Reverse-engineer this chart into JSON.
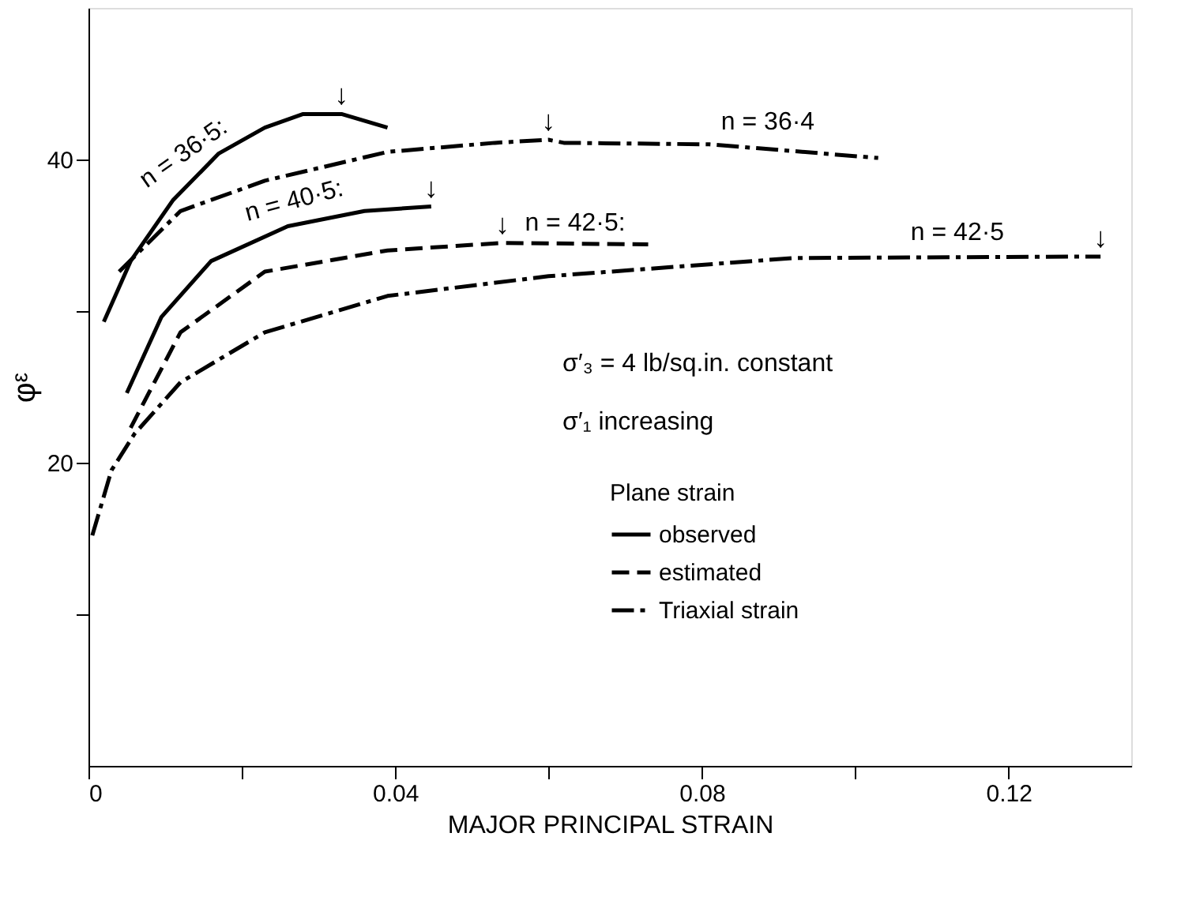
{
  "chart_data": {
    "type": "line",
    "xlabel": "MAJOR   PRINCIPAL   STRAIN",
    "ylabel": "φᵋ",
    "legend_title": "Plane strain",
    "xlim": [
      0,
      0.136
    ],
    "ylim": [
      0,
      50
    ],
    "xticks": [
      0,
      {
        "value": 0.02,
        "label": null
      },
      0.04,
      {
        "value": 0.06,
        "label": null
      },
      0.08,
      {
        "value": 0.1,
        "label": null
      },
      0.12
    ],
    "yticks": [
      {
        "value": 10,
        "label": null
      },
      20,
      {
        "value": 30,
        "label": null
      },
      40
    ],
    "grid": false,
    "legend": "right",
    "marker": "none",
    "series": [
      {
        "name": "observed",
        "color": "#000000",
        "line_style": "solid",
        "x": [
          0.002,
          0.0055,
          0.011,
          0.017,
          0.023,
          0.028,
          0.033,
          0.039
        ],
        "values": [
          29.3,
          33.3,
          37.3,
          40.4,
          42.1,
          43.0,
          43.0,
          42.1
        ]
      },
      {
        "color": "#000000",
        "line_style": "solid",
        "x": [
          0.005,
          0.0095,
          0.016,
          0.026,
          0.036,
          0.0447
        ],
        "values": [
          24.6,
          29.6,
          33.3,
          35.6,
          36.6,
          36.9
        ]
      },
      {
        "name": "estimated",
        "color": "#000000",
        "line_style": "dashed",
        "x": [
          0.0055,
          0.012,
          0.023,
          0.039,
          0.054,
          0.073
        ],
        "values": [
          22.3,
          28.6,
          32.6,
          34.0,
          34.5,
          34.4
        ]
      },
      {
        "name": "Triaxial strain",
        "color": "#000000",
        "line_style": "dashdot",
        "x": [
          0.004,
          0.012,
          0.023,
          0.039,
          0.053,
          0.06,
          0.062,
          0.081,
          0.103
        ],
        "values": [
          32.6,
          36.6,
          38.6,
          40.5,
          41.1,
          41.3,
          41.1,
          41.0,
          40.1
        ]
      },
      {
        "color": "#000000",
        "line_style": "dashdot",
        "x": [
          0.0005,
          0.003,
          0.006,
          0.012,
          0.023,
          0.039,
          0.06,
          0.092,
          0.132
        ],
        "values": [
          15.2,
          19.5,
          21.9,
          25.3,
          28.6,
          31.0,
          32.3,
          33.5,
          33.6
        ]
      }
    ],
    "annotations": [
      "n = 36·5:",
      "n = 36·4",
      "n = 40·5:",
      "n = 42·5:",
      "n = 42·5",
      {
        "text": "↓",
        "x": 0.033,
        "y": 43.0
      },
      {
        "text": "↓",
        "x": 0.06,
        "y": 41.3
      },
      {
        "text": "↓",
        "x": 0.0447,
        "y": 36.9
      },
      {
        "text": "↓",
        "x": 0.054,
        "y": 34.5
      },
      {
        "text": "↓",
        "x": 0.132,
        "y": 33.6
      },
      "σ′₃ = 4 lb/sq.in. constant",
      "σ′₁ increasing"
    ]
  }
}
